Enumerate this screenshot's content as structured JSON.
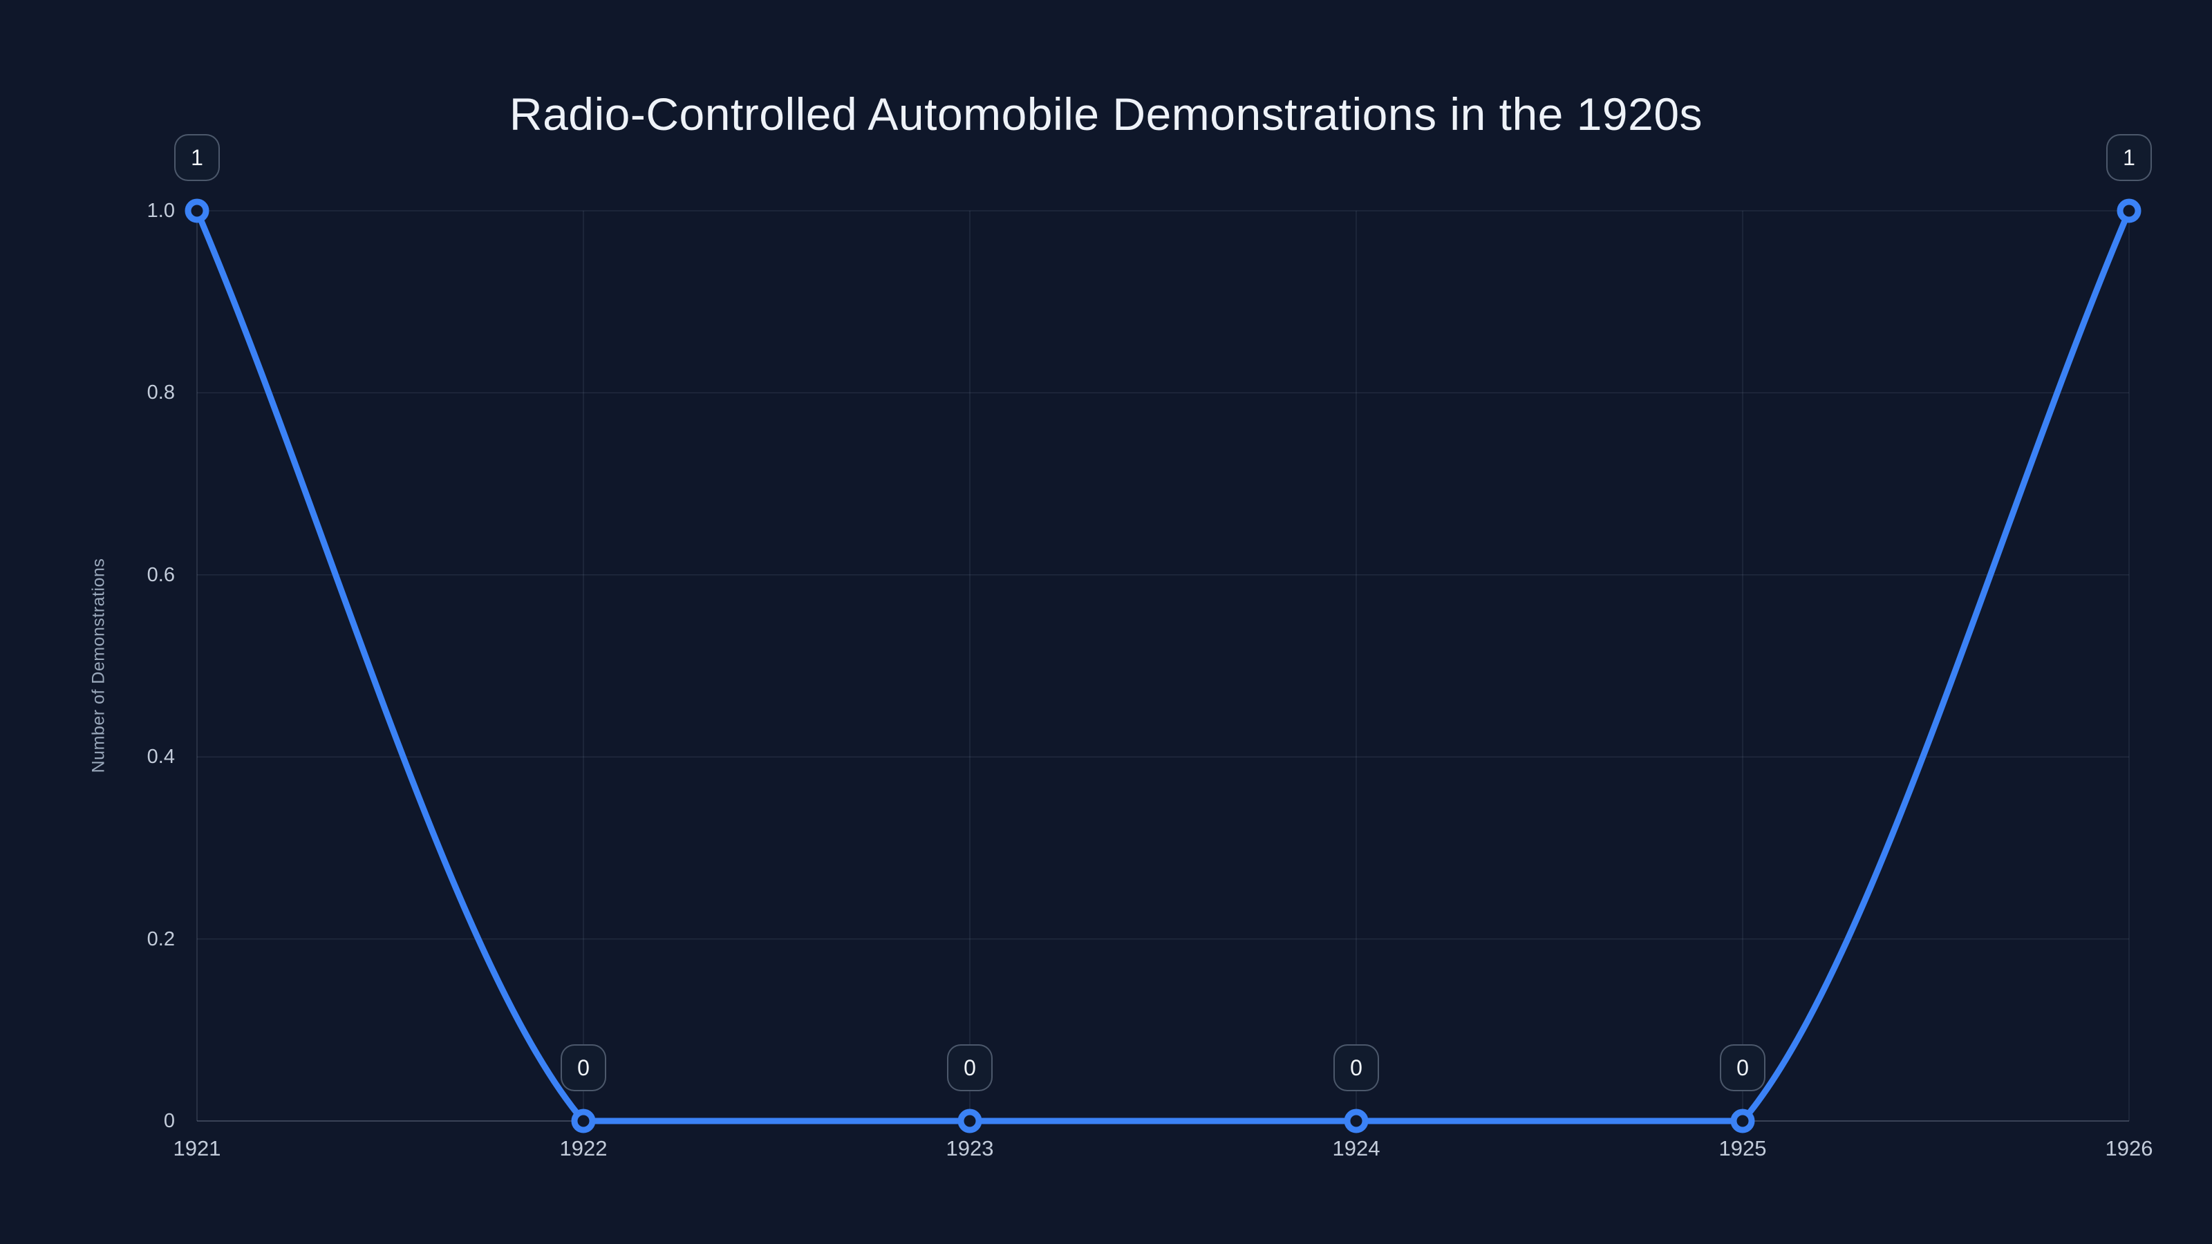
{
  "page": {
    "background": "#0f172a"
  },
  "chart_data": {
    "type": "line",
    "title": "Radio-Controlled Automobile Demonstrations in the 1920s",
    "xlabel": "",
    "ylabel": "Number of Demonstrations",
    "x": [
      1921,
      1922,
      1923,
      1924,
      1925,
      1926
    ],
    "x_tick_labels": [
      "1921",
      "1922",
      "1923",
      "1924",
      "1925",
      "1926"
    ],
    "series": [
      {
        "name": "Demonstrations",
        "values": [
          1,
          0,
          0,
          0,
          0,
          1
        ]
      }
    ],
    "point_labels": [
      "1",
      "0",
      "0",
      "0",
      "0",
      "1"
    ],
    "y_ticks": [
      0,
      0.2,
      0.4,
      0.6,
      0.8,
      1
    ],
    "y_tick_labels": [
      "0",
      "0.2",
      "0.4",
      "0.6",
      "0.8",
      "1.0"
    ],
    "ylim": [
      0,
      1
    ],
    "xlim": [
      1921,
      1926
    ],
    "grid": true,
    "legend": "none",
    "curve": "smoothed-ends-flat-middle",
    "marker_style": "open-circle",
    "colors": {
      "line": "#3b82f6",
      "marker_fill": "#0f172a",
      "grid": "rgba(148,163,184,0.14)",
      "zero_line": "rgba(148,163,184,0.32)",
      "axis_line": "rgba(148,163,184,0.25)",
      "tick_label": "#c3ccda",
      "axis_title": "#9aa8bb",
      "title": "#eef2f8",
      "badge_border": "rgba(148,163,184,0.45)",
      "badge_bg": "#111b2d",
      "badge_text": "#f1f5f9"
    }
  }
}
